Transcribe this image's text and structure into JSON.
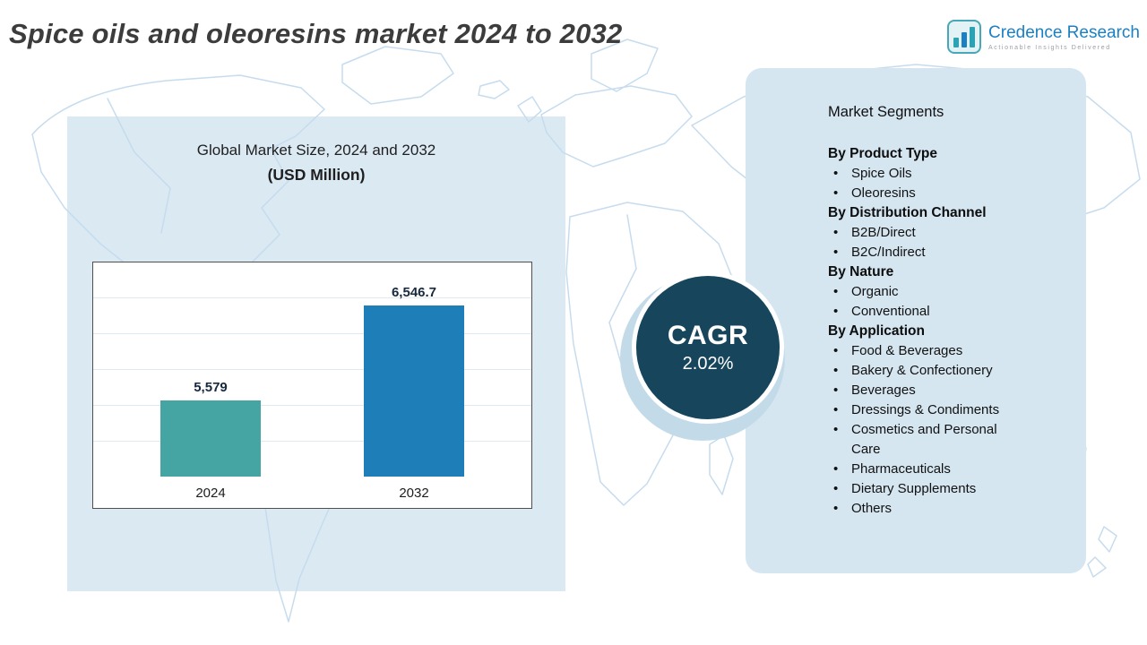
{
  "header": {
    "title": "Spice oils and oleoresins market 2024 to 2032",
    "logo": {
      "name": "Credence Research",
      "tagline": "Actionable Insights Delivered"
    }
  },
  "chart": {
    "title_line1": "Global Market Size, 2024 and 2032",
    "title_line2": "(USD Million)"
  },
  "chart_data": {
    "type": "bar",
    "title": "Global Market Size, 2024 and 2032",
    "unit": "USD Million",
    "categories": [
      "2024",
      "2032"
    ],
    "values": [
      5579,
      6546.7
    ],
    "value_labels": [
      "5,579",
      "6,546.7"
    ],
    "ylim": [
      4800,
      7000
    ],
    "grid": true,
    "legend": false,
    "bar_colors": [
      "#44a5a3",
      "#1e7fb8"
    ]
  },
  "cagr": {
    "label": "CAGR",
    "value": "2.02%"
  },
  "segments": {
    "heading": "Market Segments",
    "groups": [
      {
        "title": "By Product Type",
        "items": [
          "Spice Oils",
          "Oleoresins"
        ]
      },
      {
        "title": "By Distribution Channel",
        "items": [
          "B2B/Direct",
          "B2C/Indirect"
        ]
      },
      {
        "title": "By Nature",
        "items": [
          "Organic",
          "Conventional"
        ]
      },
      {
        "title": "By Application",
        "items": [
          "Food & Beverages",
          "Bakery & Confectionery",
          "Beverages",
          "Dressings & Condiments",
          "Cosmetics and Personal Care",
          "Pharmaceuticals",
          "Dietary Supplements",
          "Others"
        ]
      }
    ]
  },
  "colors": {
    "panel_bg": "#dbe9f3",
    "segments_panel_bg": "#d5e6f1",
    "map_stroke": "#c6dcee",
    "cagr_circle": "#17465c",
    "bar_2024": "#44a5a3",
    "bar_2032": "#1e7fb8",
    "logo_blue": "#1b80c4",
    "title_gray": "#3c3c3c"
  }
}
